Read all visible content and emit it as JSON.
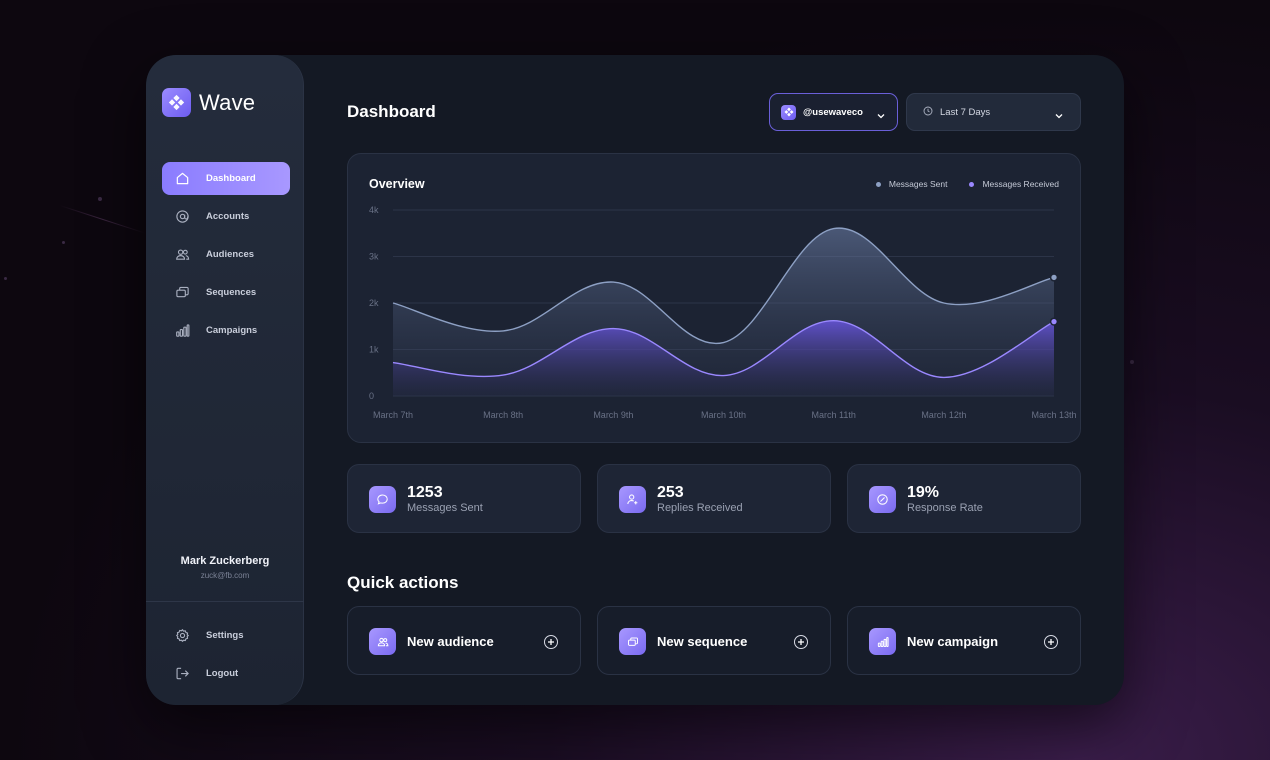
{
  "app": {
    "name": "Wave"
  },
  "sidebar": {
    "items": [
      {
        "label": "Dashboard",
        "icon": "home-icon",
        "active": true
      },
      {
        "label": "Accounts",
        "icon": "at-icon"
      },
      {
        "label": "Audiences",
        "icon": "users-icon"
      },
      {
        "label": "Sequences",
        "icon": "sequences-icon"
      },
      {
        "label": "Campaigns",
        "icon": "bar-chart-icon"
      }
    ],
    "user": {
      "name": "Mark Zuckerberg",
      "email": "zuck@fb.com"
    },
    "bottom": [
      {
        "label": "Settings",
        "icon": "gear-icon"
      },
      {
        "label": "Logout",
        "icon": "logout-icon"
      }
    ]
  },
  "header": {
    "title": "Dashboard",
    "account": "@usewaveco",
    "range": "Last 7 Days"
  },
  "colors": {
    "accent": "#8a7cff",
    "sent": "#8da0c4",
    "received": "#9a88ff"
  },
  "overview": {
    "title": "Overview"
  },
  "chart_data": {
    "type": "area",
    "x": [
      "March 7th",
      "March 8th",
      "March 9th",
      "March 10th",
      "March 11th",
      "March 12th",
      "March 13th"
    ],
    "y_ticks": [
      "4k",
      "3k",
      "2k",
      "1k",
      "0"
    ],
    "ylim": [
      0,
      4000
    ],
    "series": [
      {
        "name": "Messages Sent",
        "values": [
          2000,
          1400,
          2450,
          1150,
          3600,
          2000,
          2550
        ]
      },
      {
        "name": "Messages Received",
        "values": [
          720,
          450,
          1450,
          440,
          1620,
          400,
          1600
        ]
      }
    ],
    "legend": "top-right",
    "grid": true
  },
  "stats": [
    {
      "value": "1253",
      "label": "Messages Sent",
      "icon": "chat-icon"
    },
    {
      "value": "253",
      "label": "Replies Received",
      "icon": "user-reply-icon"
    },
    {
      "value": "19%",
      "label": "Response Rate",
      "icon": "gauge-icon"
    }
  ],
  "quick_actions": {
    "title": "Quick actions",
    "items": [
      {
        "label": "New audience",
        "icon": "users-icon"
      },
      {
        "label": "New sequence",
        "icon": "sequences-icon"
      },
      {
        "label": "New campaign",
        "icon": "bar-chart-icon"
      }
    ]
  }
}
